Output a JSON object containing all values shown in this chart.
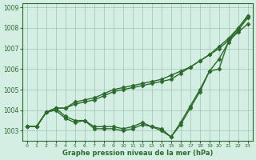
{
  "background_color": "#d4eee4",
  "grid_color": "#a8ccb8",
  "line_color": "#2d6a2d",
  "marker": "D",
  "markersize": 2.5,
  "linewidth": 1.0,
  "ylim": [
    1002.5,
    1009.2
  ],
  "xlim": [
    -0.5,
    23.5
  ],
  "yticks": [
    1003,
    1004,
    1005,
    1006,
    1007,
    1008,
    1009
  ],
  "xticks": [
    0,
    1,
    2,
    3,
    4,
    5,
    6,
    7,
    8,
    9,
    10,
    11,
    12,
    13,
    14,
    15,
    16,
    17,
    18,
    19,
    20,
    21,
    22,
    23
  ],
  "xlabel": "Graphe pression niveau de la mer (hPa)",
  "series": [
    [
      1003.2,
      1003.2,
      1003.9,
      1004.1,
      1004.1,
      1004.4,
      1004.5,
      1004.6,
      1004.8,
      1005.0,
      1005.1,
      1005.2,
      1005.3,
      1005.4,
      1005.5,
      1005.7,
      1005.9,
      1006.1,
      1006.4,
      1006.7,
      1007.0,
      1007.4,
      1007.8,
      1008.2
    ],
    [
      1003.2,
      1003.2,
      1003.9,
      1004.1,
      1004.1,
      1004.3,
      1004.4,
      1004.5,
      1004.7,
      1004.9,
      1005.0,
      1005.1,
      1005.2,
      1005.3,
      1005.4,
      1005.5,
      1005.8,
      1006.1,
      1006.4,
      1006.7,
      1007.1,
      1007.5,
      1008.0,
      1008.6
    ],
    [
      1003.2,
      1003.2,
      1003.9,
      1004.1,
      1003.7,
      1003.5,
      1003.5,
      1003.2,
      1003.2,
      1003.2,
      1003.1,
      1003.2,
      1003.4,
      1003.2,
      1003.0,
      1002.7,
      1003.4,
      1004.2,
      1005.0,
      1005.9,
      1006.0,
      1007.4,
      1008.0,
      1008.6
    ],
    [
      1003.2,
      1003.2,
      1003.9,
      1004.0,
      1003.6,
      1003.4,
      1003.5,
      1003.1,
      1003.1,
      1003.1,
      1003.0,
      1003.1,
      1003.3,
      1003.2,
      1003.1,
      1002.7,
      1003.3,
      1004.1,
      1004.9,
      1005.9,
      1006.5,
      1007.3,
      1007.9,
      1008.5
    ]
  ]
}
